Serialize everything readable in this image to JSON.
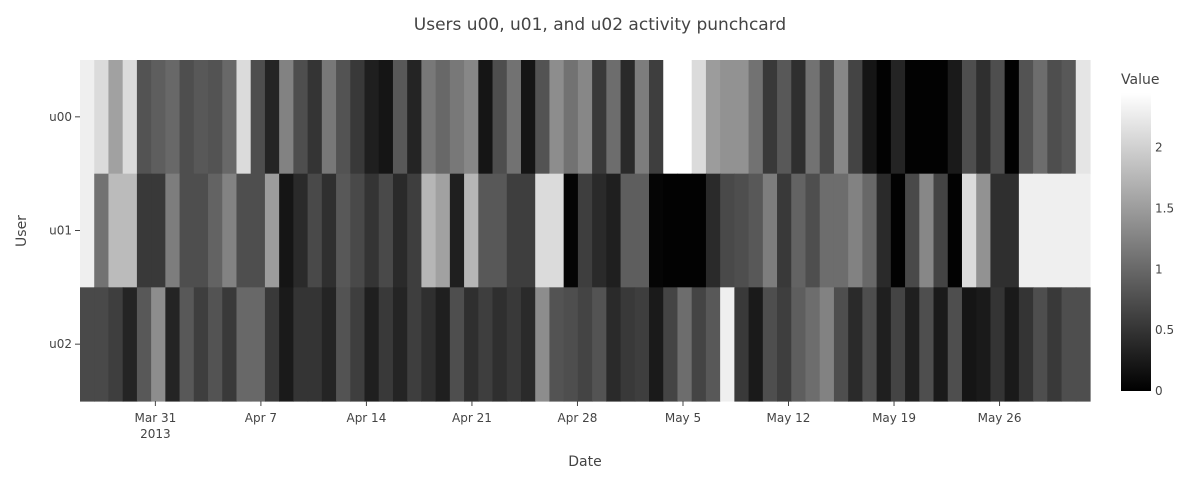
{
  "chart_data": {
    "type": "heatmap",
    "title": "Users u00, u01, and u02 activity punchcard",
    "xlabel": "Date",
    "ylabel": "User",
    "x_start": "2013-03-26",
    "x_end": "2013-06-01",
    "x_ticks": [
      {
        "date": "2013-03-31",
        "label": "Mar 31",
        "sublabel": "2013"
      },
      {
        "date": "2013-04-07",
        "label": "Apr 7"
      },
      {
        "date": "2013-04-14",
        "label": "Apr 14"
      },
      {
        "date": "2013-04-21",
        "label": "Apr 21"
      },
      {
        "date": "2013-04-28",
        "label": "Apr 28"
      },
      {
        "date": "2013-05-05",
        "label": "May 5"
      },
      {
        "date": "2013-05-12",
        "label": "May 12"
      },
      {
        "date": "2013-05-19",
        "label": "May 19"
      },
      {
        "date": "2013-05-26",
        "label": "May 26"
      }
    ],
    "users": [
      "u00",
      "u01",
      "u02"
    ],
    "colorscale": "Greys",
    "zmin": 0,
    "zmax": 2.45,
    "colorbar": {
      "title": "Value",
      "ticks": [
        0,
        0.5,
        1,
        1.5,
        2
      ]
    },
    "z": [
      [
        2.3,
        2.1,
        1.55,
        2.1,
        0.8,
        0.9,
        1.0,
        0.75,
        0.85,
        0.8,
        1.0,
        2.1,
        0.75,
        0.35,
        1.25,
        0.75,
        0.5,
        1.15,
        0.8,
        0.55,
        0.3,
        0.2,
        0.85,
        0.35,
        1.15,
        1.0,
        1.15,
        1.3,
        0.2,
        0.75,
        1.1,
        0.2,
        0.8,
        1.35,
        1.1,
        1.3,
        0.55,
        1.05,
        0.4,
        1.2,
        0.6,
        2.45,
        2.45,
        2.1,
        1.5,
        1.4,
        1.4,
        1.1,
        0.55,
        0.85,
        0.45,
        1.1,
        0.7,
        1.3,
        0.65,
        0.2,
        0.02,
        0.35,
        0.02,
        0.02,
        0.02,
        0.25,
        0.75,
        0.45,
        0.75,
        0.02,
        0.8,
        1.05,
        0.75,
        0.85,
        2.2
      ],
      [
        2.3,
        1.1,
        1.8,
        1.8,
        0.55,
        0.55,
        1.2,
        0.75,
        0.75,
        0.95,
        1.25,
        0.75,
        0.75,
        1.5,
        0.2,
        0.4,
        0.7,
        0.45,
        0.85,
        0.7,
        0.5,
        0.7,
        0.4,
        0.6,
        1.75,
        1.55,
        0.3,
        1.75,
        0.85,
        0.85,
        0.6,
        0.6,
        2.1,
        2.1,
        0.05,
        0.6,
        0.4,
        0.3,
        0.9,
        0.9,
        0.05,
        0.02,
        0.02,
        0.02,
        0.4,
        0.7,
        0.75,
        0.85,
        1.2,
        0.55,
        0.95,
        0.75,
        1.05,
        1.05,
        1.25,
        1.0,
        0.4,
        0.02,
        0.7,
        1.3,
        0.65,
        0.02,
        2.1,
        1.4,
        0.45,
        0.45,
        2.3,
        2.3,
        2.3,
        2.3,
        2.3
      ],
      [
        0.7,
        0.7,
        0.6,
        0.35,
        0.85,
        1.35,
        0.35,
        0.85,
        0.6,
        0.8,
        0.55,
        1.0,
        1.0,
        0.55,
        0.25,
        0.5,
        0.5,
        0.35,
        0.8,
        0.6,
        0.3,
        0.55,
        0.35,
        0.6,
        0.45,
        0.3,
        0.75,
        0.45,
        0.6,
        0.45,
        0.55,
        0.4,
        1.35,
        0.8,
        0.75,
        0.65,
        0.8,
        0.4,
        0.55,
        0.6,
        0.25,
        0.65,
        1.05,
        0.65,
        0.85,
        2.3,
        0.55,
        0.25,
        0.75,
        0.6,
        0.9,
        1.05,
        1.25,
        0.75,
        0.4,
        0.75,
        0.3,
        0.65,
        0.3,
        0.75,
        0.25,
        0.75,
        0.2,
        0.25,
        0.5,
        0.25,
        0.5,
        0.75,
        0.55,
        0.75,
        0.75
      ]
    ]
  }
}
